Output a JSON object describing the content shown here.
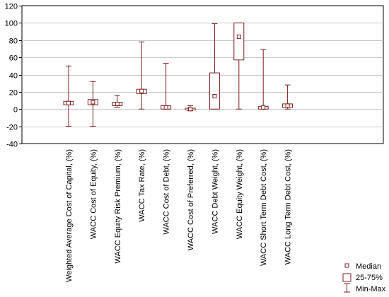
{
  "chart_data": {
    "type": "boxplot",
    "title": "",
    "xlabel": "",
    "ylabel": "",
    "ylim": [
      -40,
      120
    ],
    "yticks": [
      -40,
      -20,
      0,
      20,
      40,
      60,
      80,
      100,
      120
    ],
    "grid": true,
    "legend_position": "bottom-right",
    "colors": {
      "box": "#7a1f1f",
      "grid": "#c8c8c8",
      "axis": "#000000"
    },
    "legend": [
      "Median",
      "25-75%",
      "Min-Max"
    ],
    "categories": [
      "Weighted Average Cost of Capital, (%)",
      "WACC Cost of Equity, (%)",
      "WACC Equity Risk Premium, (%)",
      "WACC Tax Rate, (%)",
      "WACC Cost of Debt, (%)",
      "WACC Cost of Preferred, (%)",
      "WACC Debt Weight, (%)",
      "WACC Equity Weight, (%)",
      "WACC Short Term Debt Cost, (%)",
      "WACC Long Term Debt Cost, (%)"
    ],
    "series": [
      {
        "min": -20,
        "q1": 5,
        "median": 7,
        "q3": 9,
        "max": 50
      },
      {
        "min": -20,
        "q1": 5,
        "median": 8,
        "q3": 11,
        "max": 32
      },
      {
        "min": 2,
        "q1": 4,
        "median": 6,
        "q3": 8,
        "max": 16
      },
      {
        "min": 0,
        "q1": 18,
        "median": 21,
        "q3": 23,
        "max": 78
      },
      {
        "min": 0,
        "q1": 0,
        "median": 2,
        "q3": 4,
        "max": 53
      },
      {
        "min": -2,
        "q1": -1,
        "median": 0,
        "q3": 1,
        "max": 4
      },
      {
        "min": 0,
        "q1": 0,
        "median": 15,
        "q3": 42,
        "max": 99
      },
      {
        "min": 0,
        "q1": 57,
        "median": 84,
        "q3": 100,
        "max": 100
      },
      {
        "min": 0,
        "q1": 0,
        "median": 2,
        "q3": 3,
        "max": 69
      },
      {
        "min": 0,
        "q1": 2,
        "median": 4,
        "q3": 6,
        "max": 28
      }
    ]
  }
}
